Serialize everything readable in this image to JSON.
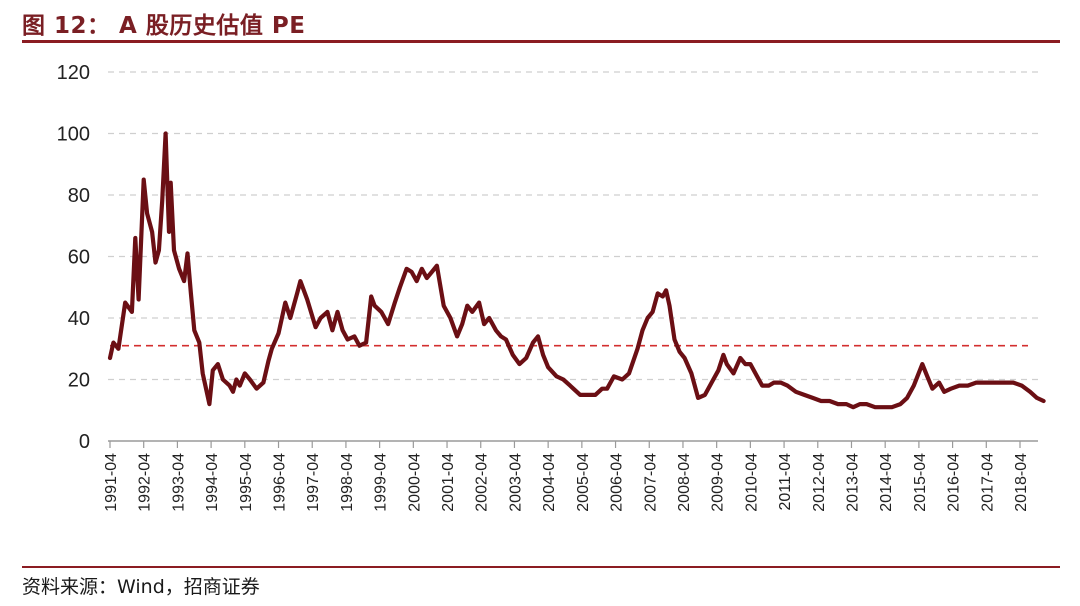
{
  "header": {
    "title": "图 12： A 股历史估值 PE"
  },
  "footer": {
    "source": "资料来源：Wind，招商证券"
  },
  "colors": {
    "accent": "#8b1c22",
    "series": "#6b0f14",
    "reference": "#d32f2f",
    "grid": "#cfcfcf"
  },
  "chart_data": {
    "type": "line",
    "title": "A 股历史估值 PE",
    "xlabel": "",
    "ylabel": "",
    "ylim": [
      0,
      120
    ],
    "yticks": [
      0,
      20,
      40,
      60,
      80,
      100,
      120
    ],
    "xticks": [
      "1991-04",
      "1992-04",
      "1993-04",
      "1994-04",
      "1995-04",
      "1996-04",
      "1997-04",
      "1998-04",
      "1999-04",
      "2000-04",
      "2001-04",
      "2002-04",
      "2003-04",
      "2004-04",
      "2005-04",
      "2006-04",
      "2007-04",
      "2008-04",
      "2009-04",
      "2010-04",
      "2011-04",
      "2012-04",
      "2013-04",
      "2014-04",
      "2015-04",
      "2016-04",
      "2017-04",
      "2018-04"
    ],
    "grid": "horizontal-dashed",
    "reference_line": {
      "y": 31,
      "style": "dashed"
    },
    "series": [
      {
        "name": "PE",
        "points": [
          [
            1991.25,
            27
          ],
          [
            1991.35,
            32
          ],
          [
            1991.5,
            30
          ],
          [
            1991.7,
            45
          ],
          [
            1991.9,
            42
          ],
          [
            1992.0,
            66
          ],
          [
            1992.1,
            46
          ],
          [
            1992.25,
            85
          ],
          [
            1992.35,
            74
          ],
          [
            1992.5,
            68
          ],
          [
            1992.6,
            58
          ],
          [
            1992.7,
            62
          ],
          [
            1992.8,
            78
          ],
          [
            1992.9,
            100
          ],
          [
            1993.0,
            68
          ],
          [
            1993.05,
            84
          ],
          [
            1993.15,
            62
          ],
          [
            1993.3,
            56
          ],
          [
            1993.45,
            52
          ],
          [
            1993.55,
            61
          ],
          [
            1993.65,
            48
          ],
          [
            1993.75,
            36
          ],
          [
            1993.9,
            32
          ],
          [
            1994.0,
            22
          ],
          [
            1994.2,
            12
          ],
          [
            1994.3,
            23
          ],
          [
            1994.45,
            25
          ],
          [
            1994.6,
            20
          ],
          [
            1994.8,
            18
          ],
          [
            1994.9,
            16
          ],
          [
            1995.0,
            20
          ],
          [
            1995.1,
            18
          ],
          [
            1995.25,
            22
          ],
          [
            1995.4,
            20
          ],
          [
            1995.6,
            17
          ],
          [
            1995.8,
            19
          ],
          [
            1995.95,
            26
          ],
          [
            1996.05,
            30
          ],
          [
            1996.25,
            35
          ],
          [
            1996.45,
            45
          ],
          [
            1996.6,
            40
          ],
          [
            1996.8,
            48
          ],
          [
            1996.9,
            52
          ],
          [
            1997.1,
            46
          ],
          [
            1997.35,
            37
          ],
          [
            1997.5,
            40
          ],
          [
            1997.7,
            42
          ],
          [
            1997.85,
            36
          ],
          [
            1998.0,
            42
          ],
          [
            1998.15,
            36
          ],
          [
            1998.3,
            33
          ],
          [
            1998.5,
            34
          ],
          [
            1998.65,
            31
          ],
          [
            1998.85,
            32
          ],
          [
            1999.0,
            47
          ],
          [
            1999.1,
            44
          ],
          [
            1999.3,
            42
          ],
          [
            1999.5,
            38
          ],
          [
            1999.7,
            45
          ],
          [
            1999.85,
            50
          ],
          [
            2000.05,
            56
          ],
          [
            2000.2,
            55
          ],
          [
            2000.35,
            52
          ],
          [
            2000.5,
            56
          ],
          [
            2000.65,
            53
          ],
          [
            2000.8,
            55
          ],
          [
            2000.95,
            57
          ],
          [
            2001.15,
            44
          ],
          [
            2001.35,
            40
          ],
          [
            2001.55,
            34
          ],
          [
            2001.7,
            38
          ],
          [
            2001.85,
            44
          ],
          [
            2002.0,
            42
          ],
          [
            2002.2,
            45
          ],
          [
            2002.35,
            38
          ],
          [
            2002.5,
            40
          ],
          [
            2002.7,
            36
          ],
          [
            2002.85,
            34
          ],
          [
            2003.0,
            33
          ],
          [
            2003.2,
            28
          ],
          [
            2003.4,
            25
          ],
          [
            2003.6,
            27
          ],
          [
            2003.8,
            32
          ],
          [
            2003.95,
            34
          ],
          [
            2004.1,
            28
          ],
          [
            2004.25,
            24
          ],
          [
            2004.5,
            21
          ],
          [
            2004.7,
            20
          ],
          [
            2004.9,
            18
          ],
          [
            2005.0,
            17
          ],
          [
            2005.2,
            15
          ],
          [
            2005.4,
            15
          ],
          [
            2005.65,
            15
          ],
          [
            2005.85,
            17
          ],
          [
            2006.0,
            17
          ],
          [
            2006.2,
            21
          ],
          [
            2006.45,
            20
          ],
          [
            2006.65,
            22
          ],
          [
            2006.9,
            30
          ],
          [
            2007.05,
            36
          ],
          [
            2007.2,
            40
          ],
          [
            2007.35,
            42
          ],
          [
            2007.5,
            48
          ],
          [
            2007.65,
            47
          ],
          [
            2007.75,
            49
          ],
          [
            2007.85,
            44
          ],
          [
            2008.0,
            33
          ],
          [
            2008.15,
            29
          ],
          [
            2008.3,
            27
          ],
          [
            2008.5,
            22
          ],
          [
            2008.7,
            14
          ],
          [
            2008.9,
            15
          ],
          [
            2009.1,
            19
          ],
          [
            2009.3,
            23
          ],
          [
            2009.45,
            28
          ],
          [
            2009.55,
            25
          ],
          [
            2009.75,
            22
          ],
          [
            2009.95,
            27
          ],
          [
            2010.1,
            25
          ],
          [
            2010.25,
            25
          ],
          [
            2010.45,
            21
          ],
          [
            2010.6,
            18
          ],
          [
            2010.8,
            18
          ],
          [
            2010.95,
            19
          ],
          [
            2011.15,
            19
          ],
          [
            2011.35,
            18
          ],
          [
            2011.6,
            16
          ],
          [
            2011.85,
            15
          ],
          [
            2012.1,
            14
          ],
          [
            2012.35,
            13
          ],
          [
            2012.6,
            13
          ],
          [
            2012.85,
            12
          ],
          [
            2013.1,
            12
          ],
          [
            2013.3,
            11
          ],
          [
            2013.5,
            12
          ],
          [
            2013.7,
            12
          ],
          [
            2013.95,
            11
          ],
          [
            2014.2,
            11
          ],
          [
            2014.45,
            11
          ],
          [
            2014.7,
            12
          ],
          [
            2014.9,
            14
          ],
          [
            2015.1,
            18
          ],
          [
            2015.35,
            25
          ],
          [
            2015.5,
            21
          ],
          [
            2015.65,
            17
          ],
          [
            2015.85,
            19
          ],
          [
            2016.0,
            16
          ],
          [
            2016.2,
            17
          ],
          [
            2016.45,
            18
          ],
          [
            2016.7,
            18
          ],
          [
            2016.95,
            19
          ],
          [
            2017.2,
            19
          ],
          [
            2017.5,
            19
          ],
          [
            2017.8,
            19
          ],
          [
            2018.05,
            19
          ],
          [
            2018.3,
            18
          ],
          [
            2018.55,
            16
          ],
          [
            2018.75,
            14
          ],
          [
            2018.95,
            13
          ]
        ]
      }
    ]
  }
}
